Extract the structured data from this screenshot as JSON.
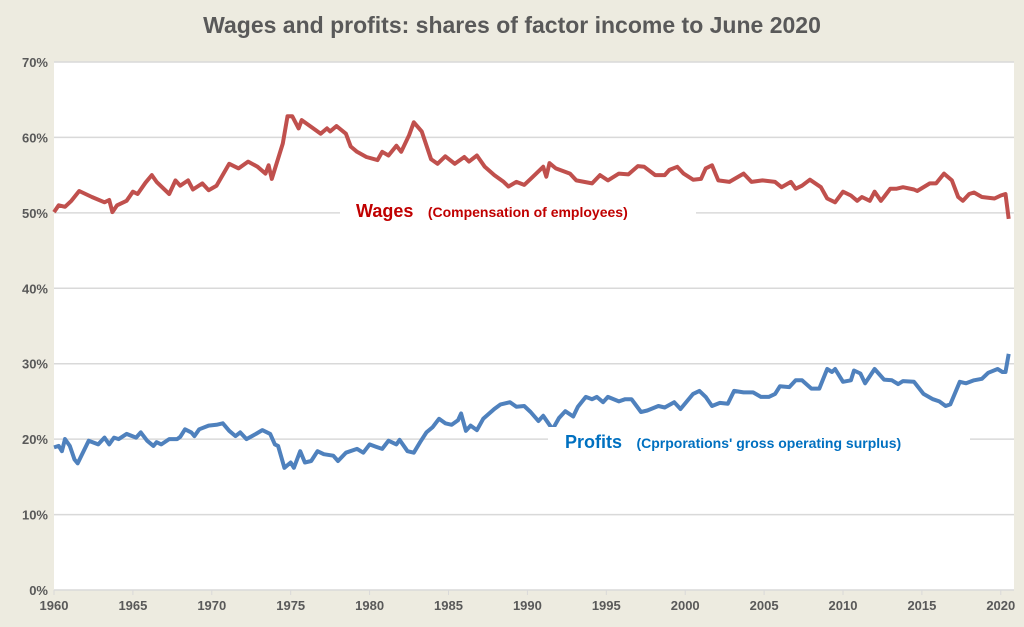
{
  "chart_data": {
    "type": "line",
    "title": "Wages and profits: shares of factor income to June 2020",
    "xlabel": "",
    "ylabel": "",
    "xlim": [
      1960,
      2020.5
    ],
    "ylim": [
      0,
      70
    ],
    "x_ticks": [
      "1960",
      "1965",
      "1970",
      "1975",
      "1980",
      "1985",
      "1990",
      "1995",
      "2000",
      "2005",
      "2010",
      "2015",
      "2020"
    ],
    "y_ticks": [
      "0%",
      "10%",
      "20%",
      "30%",
      "40%",
      "50%",
      "60%",
      "70%"
    ],
    "grid": true,
    "legend": "none (inline labels)",
    "background_color": "#EDEBE0",
    "plot_background": "#FFFFFF",
    "series": [
      {
        "name": "Wages",
        "annotation_main": "Wages",
        "annotation_sub": "(Compensation of employees)",
        "color": "#C0504D",
        "label_color": "#C00000",
        "points": [
          [
            1960,
            50.1
          ],
          [
            1960.3,
            51
          ],
          [
            1960.7,
            50.8
          ],
          [
            1961.1,
            51.6
          ],
          [
            1961.6,
            52.9
          ],
          [
            1962.4,
            52.1
          ],
          [
            1963.2,
            51.4
          ],
          [
            1963.5,
            51.7
          ],
          [
            1963.7,
            50.1
          ],
          [
            1964,
            51
          ],
          [
            1964.6,
            51.6
          ],
          [
            1965,
            52.8
          ],
          [
            1965.3,
            52.5
          ],
          [
            1965.8,
            54
          ],
          [
            1966.2,
            55
          ],
          [
            1966.5,
            54.1
          ],
          [
            1967.3,
            52.5
          ],
          [
            1967.7,
            54.3
          ],
          [
            1968,
            53.6
          ],
          [
            1968.5,
            54.3
          ],
          [
            1968.8,
            53.1
          ],
          [
            1969.4,
            53.9
          ],
          [
            1969.8,
            53
          ],
          [
            1970.3,
            53.6
          ],
          [
            1971.1,
            56.5
          ],
          [
            1971.7,
            55.9
          ],
          [
            1972.3,
            56.8
          ],
          [
            1972.9,
            56.1
          ],
          [
            1973.4,
            55.2
          ],
          [
            1973.6,
            56.3
          ],
          [
            1973.8,
            54.5
          ],
          [
            1974.5,
            59.2
          ],
          [
            1974.8,
            62.8
          ],
          [
            1975.1,
            62.8
          ],
          [
            1975.5,
            61.2
          ],
          [
            1975.7,
            62.3
          ],
          [
            1976.9,
            60.5
          ],
          [
            1977.3,
            61.2
          ],
          [
            1977.5,
            60.8
          ],
          [
            1977.9,
            61.5
          ],
          [
            1978.5,
            60.5
          ],
          [
            1978.8,
            58.8
          ],
          [
            1979.2,
            58.1
          ],
          [
            1979.8,
            57.4
          ],
          [
            1980.5,
            57
          ],
          [
            1980.8,
            58.1
          ],
          [
            1981.2,
            57.6
          ],
          [
            1981.7,
            58.9
          ],
          [
            1982,
            58.1
          ],
          [
            1982.5,
            60.3
          ],
          [
            1982.8,
            62
          ],
          [
            1983.3,
            60.8
          ],
          [
            1983.9,
            57.1
          ],
          [
            1984.3,
            56.5
          ],
          [
            1984.8,
            57.5
          ],
          [
            1985.4,
            56.5
          ],
          [
            1986,
            57.4
          ],
          [
            1986.3,
            56.8
          ],
          [
            1986.8,
            57.6
          ],
          [
            1987.3,
            56.1
          ],
          [
            1987.9,
            55
          ],
          [
            1988.5,
            54.1
          ],
          [
            1988.8,
            53.5
          ],
          [
            1989.3,
            54.1
          ],
          [
            1989.8,
            53.7
          ],
          [
            1990.2,
            54.5
          ],
          [
            1991,
            56.1
          ],
          [
            1991.2,
            54.8
          ],
          [
            1991.4,
            56.6
          ],
          [
            1991.8,
            55.9
          ],
          [
            1992.7,
            55.2
          ],
          [
            1993.1,
            54.3
          ],
          [
            1994.1,
            53.9
          ],
          [
            1994.6,
            55
          ],
          [
            1995.1,
            54.3
          ],
          [
            1995.8,
            55.2
          ],
          [
            1996.4,
            55.1
          ],
          [
            1997,
            56.2
          ],
          [
            1997.4,
            56.1
          ],
          [
            1998.1,
            55
          ],
          [
            1998.7,
            55
          ],
          [
            1999,
            55.7
          ],
          [
            1999.5,
            56.1
          ],
          [
            1999.9,
            55.2
          ],
          [
            2000.5,
            54.4
          ],
          [
            2001,
            54.5
          ],
          [
            2001.3,
            55.9
          ],
          [
            2001.7,
            56.3
          ],
          [
            2002.1,
            54.3
          ],
          [
            2002.8,
            54.1
          ],
          [
            2003.7,
            55.2
          ],
          [
            2004.2,
            54.1
          ],
          [
            2004.9,
            54.3
          ],
          [
            2005.7,
            54.1
          ],
          [
            2006.1,
            53.4
          ],
          [
            2006.7,
            54.1
          ],
          [
            2007,
            53.2
          ],
          [
            2007.4,
            53.6
          ],
          [
            2007.9,
            54.4
          ],
          [
            2008.6,
            53.4
          ],
          [
            2009,
            51.9
          ],
          [
            2009.5,
            51.4
          ],
          [
            2010,
            52.8
          ],
          [
            2010.5,
            52.3
          ],
          [
            2010.9,
            51.6
          ],
          [
            2011.2,
            52.1
          ],
          [
            2011.7,
            51.6
          ],
          [
            2012,
            52.8
          ],
          [
            2012.4,
            51.6
          ],
          [
            2012.6,
            52.1
          ],
          [
            2013,
            53.2
          ],
          [
            2013.4,
            53.2
          ],
          [
            2013.8,
            53.4
          ],
          [
            2014.5,
            53.1
          ],
          [
            2014.7,
            52.9
          ],
          [
            2015.5,
            53.9
          ],
          [
            2015.9,
            53.9
          ],
          [
            2016.4,
            55.2
          ],
          [
            2016.9,
            54.3
          ],
          [
            2017.3,
            52.1
          ],
          [
            2017.6,
            51.6
          ],
          [
            2018,
            52.5
          ],
          [
            2018.3,
            52.7
          ],
          [
            2018.8,
            52.1
          ],
          [
            2019.6,
            51.9
          ],
          [
            2020,
            52.3
          ],
          [
            2020.3,
            52.5
          ],
          [
            2020.5,
            49.2
          ]
        ]
      },
      {
        "name": "Profits",
        "annotation_main": "Profits",
        "annotation_sub": "(Cprporations' gross operating surplus)",
        "color": "#4F81BD",
        "label_color": "#0070C0",
        "points": [
          [
            1960,
            18.9
          ],
          [
            1960.3,
            19.1
          ],
          [
            1960.5,
            18.4
          ],
          [
            1960.7,
            20
          ],
          [
            1961,
            19.1
          ],
          [
            1961.3,
            17.3
          ],
          [
            1961.5,
            16.8
          ],
          [
            1962.2,
            19.8
          ],
          [
            1962.8,
            19.3
          ],
          [
            1963.2,
            20.2
          ],
          [
            1963.5,
            19.3
          ],
          [
            1963.8,
            20.2
          ],
          [
            1964.1,
            20
          ],
          [
            1964.6,
            20.7
          ],
          [
            1965.2,
            20.2
          ],
          [
            1965.5,
            20.9
          ],
          [
            1965.9,
            19.8
          ],
          [
            1966.3,
            19.1
          ],
          [
            1966.5,
            19.6
          ],
          [
            1966.8,
            19.3
          ],
          [
            1967.3,
            20
          ],
          [
            1967.8,
            20
          ],
          [
            1968,
            20.3
          ],
          [
            1968.3,
            21.3
          ],
          [
            1968.7,
            20.9
          ],
          [
            1968.9,
            20.4
          ],
          [
            1969.2,
            21.3
          ],
          [
            1969.8,
            21.8
          ],
          [
            1970.3,
            21.9
          ],
          [
            1970.7,
            22.1
          ],
          [
            1971.1,
            21.1
          ],
          [
            1971.5,
            20.4
          ],
          [
            1971.8,
            20.9
          ],
          [
            1972.2,
            20
          ],
          [
            1972.8,
            20.7
          ],
          [
            1973.2,
            21.2
          ],
          [
            1973.7,
            20.7
          ],
          [
            1974,
            19.3
          ],
          [
            1974.2,
            19.1
          ],
          [
            1974.6,
            16.2
          ],
          [
            1975,
            16.9
          ],
          [
            1975.2,
            16.2
          ],
          [
            1975.6,
            18.4
          ],
          [
            1975.9,
            16.9
          ],
          [
            1976.3,
            17.1
          ],
          [
            1976.7,
            18.4
          ],
          [
            1977.1,
            18
          ],
          [
            1977.7,
            17.8
          ],
          [
            1978,
            17.1
          ],
          [
            1978.5,
            18.2
          ],
          [
            1979.2,
            18.7
          ],
          [
            1979.6,
            18.2
          ],
          [
            1980,
            19.3
          ],
          [
            1980.4,
            19
          ],
          [
            1980.8,
            18.7
          ],
          [
            1981.2,
            19.8
          ],
          [
            1981.7,
            19.3
          ],
          [
            1981.9,
            19.9
          ],
          [
            1982.4,
            18.4
          ],
          [
            1982.8,
            18.2
          ],
          [
            1983.2,
            19.6
          ],
          [
            1983.6,
            20.9
          ],
          [
            1984,
            21.6
          ],
          [
            1984.4,
            22.7
          ],
          [
            1984.8,
            22.1
          ],
          [
            1985.2,
            21.9
          ],
          [
            1985.6,
            22.5
          ],
          [
            1985.8,
            23.4
          ],
          [
            1986.1,
            21.1
          ],
          [
            1986.4,
            21.8
          ],
          [
            1986.8,
            21.2
          ],
          [
            1987.2,
            22.7
          ],
          [
            1987.9,
            24
          ],
          [
            1988.3,
            24.6
          ],
          [
            1988.9,
            24.9
          ],
          [
            1989.3,
            24.3
          ],
          [
            1989.8,
            24.4
          ],
          [
            1990.2,
            23.6
          ],
          [
            1990.7,
            22.4
          ],
          [
            1991,
            23.1
          ],
          [
            1991.6,
            21.3
          ],
          [
            1992,
            22.8
          ],
          [
            1992.4,
            23.7
          ],
          [
            1992.9,
            23
          ],
          [
            1993.2,
            24.3
          ],
          [
            1993.7,
            25.6
          ],
          [
            1994.1,
            25.3
          ],
          [
            1994.4,
            25.6
          ],
          [
            1994.8,
            24.9
          ],
          [
            1995.1,
            25.6
          ],
          [
            1995.8,
            25
          ],
          [
            1996.2,
            25.3
          ],
          [
            1996.6,
            25.3
          ],
          [
            1997.2,
            23.6
          ],
          [
            1997.6,
            23.8
          ],
          [
            1998.3,
            24.4
          ],
          [
            1998.7,
            24.2
          ],
          [
            1999.3,
            24.9
          ],
          [
            1999.7,
            24
          ],
          [
            2000.5,
            26
          ],
          [
            2000.9,
            26.4
          ],
          [
            2001.3,
            25.6
          ],
          [
            2001.7,
            24.4
          ],
          [
            2002.2,
            24.8
          ],
          [
            2002.7,
            24.7
          ],
          [
            2003.1,
            26.4
          ],
          [
            2003.7,
            26.2
          ],
          [
            2004.3,
            26.2
          ],
          [
            2004.8,
            25.6
          ],
          [
            2005.3,
            25.6
          ],
          [
            2005.7,
            26
          ],
          [
            2006,
            27
          ],
          [
            2006.6,
            26.9
          ],
          [
            2007,
            27.8
          ],
          [
            2007.4,
            27.8
          ],
          [
            2008,
            26.7
          ],
          [
            2008.5,
            26.7
          ],
          [
            2009,
            29.3
          ],
          [
            2009.3,
            28.9
          ],
          [
            2009.5,
            29.3
          ],
          [
            2010,
            27.6
          ],
          [
            2010.5,
            27.8
          ],
          [
            2010.7,
            29.1
          ],
          [
            2011.1,
            28.7
          ],
          [
            2011.4,
            27.4
          ],
          [
            2012,
            29.3
          ],
          [
            2012.6,
            27.9
          ],
          [
            2013.1,
            27.8
          ],
          [
            2013.5,
            27.3
          ],
          [
            2013.8,
            27.7
          ],
          [
            2014.5,
            27.6
          ],
          [
            2015.1,
            26
          ],
          [
            2015.7,
            25.3
          ],
          [
            2016.1,
            25
          ],
          [
            2016.5,
            24.4
          ],
          [
            2016.8,
            24.6
          ],
          [
            2017.4,
            27.6
          ],
          [
            2017.8,
            27.4
          ],
          [
            2018.3,
            27.8
          ],
          [
            2018.8,
            28
          ],
          [
            2019.2,
            28.8
          ],
          [
            2019.8,
            29.3
          ],
          [
            2020.1,
            28.9
          ],
          [
            2020.3,
            28.9
          ],
          [
            2020.5,
            31.3
          ]
        ]
      }
    ]
  }
}
